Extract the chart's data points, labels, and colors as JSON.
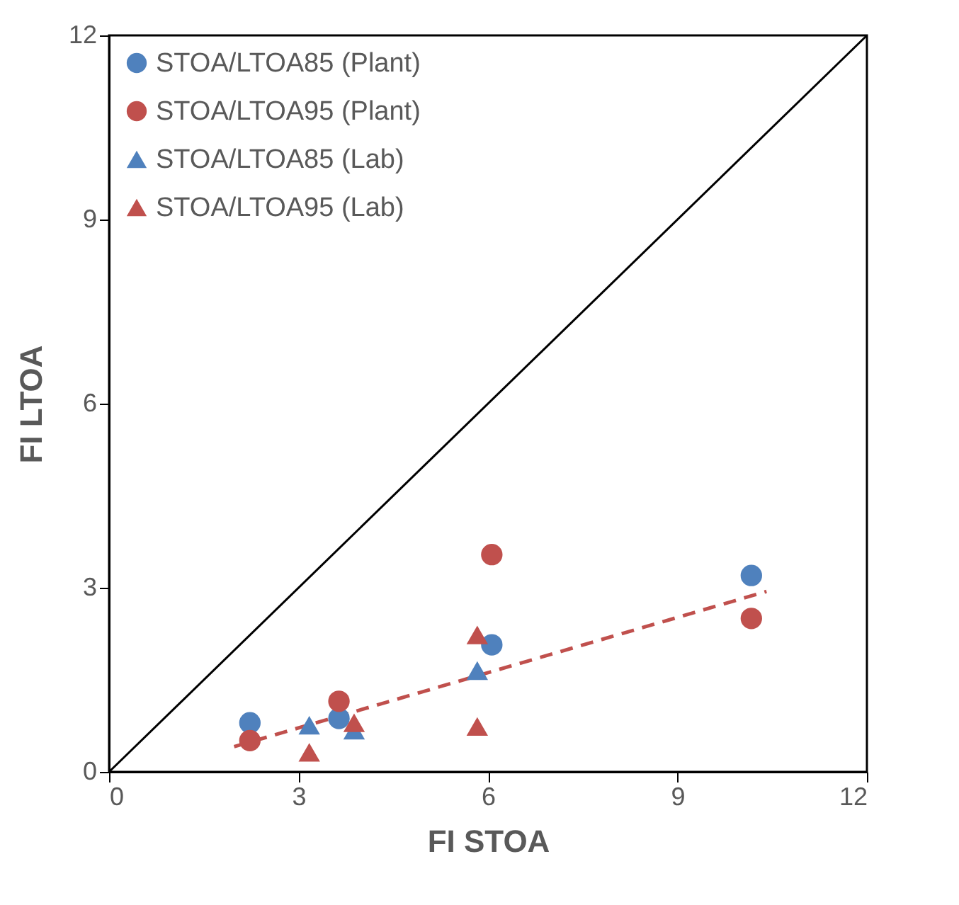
{
  "chart_data": {
    "type": "scatter",
    "xlabel": "FI STOA",
    "ylabel": "FI LTOA",
    "xlim": [
      0,
      12
    ],
    "ylim": [
      0,
      12
    ],
    "xticks": [
      0,
      3,
      6,
      9,
      12
    ],
    "yticks": [
      0,
      3,
      6,
      9,
      12
    ],
    "grid": false,
    "legend": "top left",
    "series": [
      {
        "name": "STOA/LTOA85 (Plant)",
        "color": "#4f81bd",
        "marker": "circle",
        "x": [
          2.23,
          3.64,
          6.06,
          10.17
        ],
        "values": [
          0.8,
          0.87,
          2.07,
          3.2
        ]
      },
      {
        "name": "STOA/LTOA95 (Plant)",
        "color": "#c0504d",
        "marker": "circle",
        "x": [
          2.23,
          3.64,
          6.06,
          10.17
        ],
        "values": [
          0.51,
          1.15,
          3.54,
          2.5
        ]
      },
      {
        "name": "STOA/LTOA85 (Lab)",
        "color": "#4f81bd",
        "marker": "triangle",
        "x": [
          3.17,
          3.88,
          5.83
        ],
        "values": [
          0.76,
          0.68,
          1.65
        ]
      },
      {
        "name": "STOA/LTOA95 (Lab)",
        "color": "#c0504d",
        "marker": "triangle",
        "x": [
          3.17,
          3.88,
          5.83,
          5.83
        ],
        "values": [
          0.32,
          0.8,
          2.23,
          0.74
        ]
      },
      {
        "type": "line",
        "color": "#000000",
        "line_style": "solid",
        "marker": "none",
        "x": [
          0,
          12
        ],
        "values": [
          0,
          12
        ]
      },
      {
        "type": "line",
        "color": "#c0504d",
        "line_style": "dashed",
        "marker": "none",
        "x": [
          1.98,
          10.41
        ],
        "values": [
          0.41,
          2.94
        ]
      }
    ]
  }
}
